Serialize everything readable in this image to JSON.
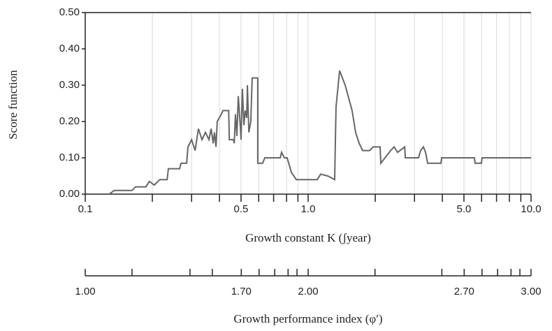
{
  "chart_data": {
    "type": "line",
    "xlabel": "Growth constant K (ʃyear)",
    "ylabel": "Score function",
    "x2label": "Growth performance index (φ′)",
    "xscale": "log",
    "grid": true,
    "color": "#666666",
    "xlim": [
      0.1,
      10
    ],
    "xticks": [
      0.1,
      0.5,
      {
        "value": 1,
        "label": "1.0"
      },
      {
        "value": 5,
        "label": "5.0"
      },
      {
        "value": 10,
        "label": "10.0"
      }
    ],
    "xminorticks": [
      0.2,
      0.3,
      0.4,
      0.6,
      0.7,
      0.8,
      0.9,
      2,
      3,
      4,
      6,
      7,
      8,
      9
    ],
    "ylim": [
      0,
      0.5
    ],
    "yticks": [
      {
        "value": 0,
        "label": "0.00"
      },
      {
        "value": 0.1,
        "label": "0.10"
      },
      {
        "value": 0.2,
        "label": "0.20"
      },
      {
        "value": 0.3,
        "label": "0.30"
      },
      {
        "value": 0.4,
        "label": "0.40"
      },
      {
        "value": 0.5,
        "label": "0.50"
      }
    ],
    "x2lim": [
      1,
      3
    ],
    "x2ticks": [
      {
        "value": 1,
        "label": "1.00"
      },
      {
        "value": 1.7,
        "label": "1.70"
      },
      {
        "value": 2,
        "label": "2.00"
      },
      {
        "value": 2.7,
        "label": "2.70"
      },
      {
        "value": 3,
        "label": "3.00"
      }
    ],
    "x2minorticks": [
      1.21,
      1.47,
      1.57,
      1.78,
      1.85,
      1.91,
      1.95,
      2.3,
      2.6,
      2.78,
      2.85,
      2.91,
      2.95
    ],
    "x": [
      0.128,
      0.135,
      0.162,
      0.168,
      0.187,
      0.194,
      0.204,
      0.216,
      0.233,
      0.236,
      0.265,
      0.269,
      0.285,
      0.289,
      0.3,
      0.311,
      0.322,
      0.334,
      0.346,
      0.359,
      0.367,
      0.375,
      0.38,
      0.386,
      0.391,
      0.408,
      0.415,
      0.44,
      0.443,
      0.462,
      0.466,
      0.472,
      0.479,
      0.486,
      0.497,
      0.5,
      0.507,
      0.515,
      0.522,
      0.53,
      0.534,
      0.542,
      0.553,
      0.561,
      0.594,
      0.594,
      0.625,
      0.639,
      0.75,
      0.76,
      0.782,
      0.805,
      0.841,
      0.885,
      1.099,
      1.138,
      1.224,
      1.315,
      1.334,
      1.384,
      1.466,
      1.575,
      1.633,
      1.694,
      1.757,
      1.888,
      1.958,
      2.103,
      2.118,
      2.212,
      2.344,
      2.431,
      2.519,
      2.71,
      2.729,
      3.128,
      3.196,
      3.29,
      3.364,
      3.437,
      3.944,
      3.97,
      5.573,
      5.611,
      5.987,
      6.035,
      10
    ],
    "values": [
      0,
      0.01,
      0.01,
      0.02,
      0.02,
      0.035,
      0.025,
      0.04,
      0.04,
      0.07,
      0.07,
      0.085,
      0.085,
      0.13,
      0.15,
      0.12,
      0.18,
      0.15,
      0.17,
      0.15,
      0.18,
      0.14,
      0.17,
      0.13,
      0.2,
      0.22,
      0.23,
      0.23,
      0.15,
      0.15,
      0.14,
      0.22,
      0.16,
      0.27,
      0.18,
      0.15,
      0.29,
      0.19,
      0.23,
      0.21,
      0.3,
      0.17,
      0.2,
      0.32,
      0.32,
      0.085,
      0.085,
      0.1,
      0.1,
      0.115,
      0.1,
      0.1,
      0.06,
      0.04,
      0.04,
      0.055,
      0.05,
      0.04,
      0.24,
      0.34,
      0.3,
      0.23,
      0.17,
      0.14,
      0.12,
      0.12,
      0.13,
      0.13,
      0.085,
      0.1,
      0.12,
      0.13,
      0.115,
      0.13,
      0.1,
      0.1,
      0.12,
      0.13,
      0.115,
      0.085,
      0.085,
      0.1,
      0.1,
      0.085,
      0.085,
      0.1,
      0.1
    ]
  }
}
